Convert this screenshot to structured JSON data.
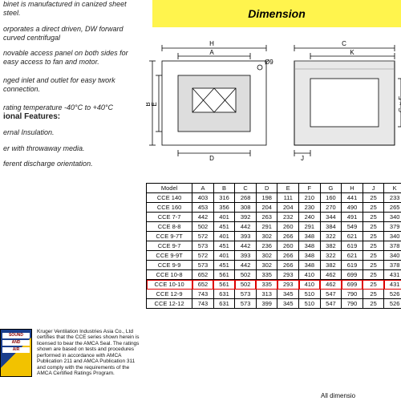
{
  "banner": {
    "title": "Dimension"
  },
  "left": {
    "p1": "binet is manufactured in\ncanized sheet steel.",
    "p2": "orporates a direct driven,\nDW forward curved centrifugal",
    "b1": "novable access panel on both sides for easy access to fan and motor.",
    "b2": "nged inlet and outlet for easy twork connection.",
    "b3": "rating temperature -40°C to +40°C",
    "features_hdr": "ional Features:",
    "f1": "ernal Insulation.",
    "f2": "er with throwaway media.",
    "f3": "ferent discharge orientation."
  },
  "amca": {
    "logo_top": "",
    "logo_mid1": "SOUND",
    "logo_mid2": "AND",
    "logo_mid3": "AIR",
    "text": "Kruger Ventilation Industries Asia Co., Ltd certifies that the CCE series shown herein is licensed to bear the AMCA Seal. The ratings shown are based on tests and procedures performed in accordance with AMCA Publication 211 and AMCA Publication 311 and comply with the requirements of the AMCA Certified Ratings Program."
  },
  "draw": {
    "dims_front": [
      "H",
      "A",
      "Ø9",
      "B",
      "E",
      "D"
    ],
    "dims_side": [
      "C",
      "K",
      "G × F",
      "J"
    ]
  },
  "table": {
    "headers": [
      "Model",
      "A",
      "B",
      "C",
      "D",
      "E",
      "F",
      "G",
      "H",
      "J",
      "K"
    ],
    "rows": [
      [
        "CCE 140",
        "403",
        "316",
        "268",
        "198",
        "111",
        "210",
        "160",
        "441",
        "25",
        "233"
      ],
      [
        "CCE 160",
        "453",
        "356",
        "308",
        "204",
        "204",
        "230",
        "270",
        "490",
        "25",
        "265"
      ],
      [
        "CCE 7-7",
        "442",
        "401",
        "392",
        "263",
        "232",
        "240",
        "344",
        "491",
        "25",
        "340"
      ],
      [
        "CCE 8-8",
        "502",
        "451",
        "442",
        "291",
        "260",
        "291",
        "384",
        "549",
        "25",
        "379"
      ],
      [
        "CCE 9-7T",
        "572",
        "401",
        "393",
        "302",
        "266",
        "348",
        "322",
        "621",
        "25",
        "340"
      ],
      [
        "CCE 9-7",
        "573",
        "451",
        "442",
        "236",
        "260",
        "348",
        "382",
        "619",
        "25",
        "378"
      ],
      [
        "CCE 9-9T",
        "572",
        "401",
        "393",
        "302",
        "266",
        "348",
        "322",
        "621",
        "25",
        "340"
      ],
      [
        "CCE 9-9",
        "573",
        "451",
        "442",
        "302",
        "266",
        "348",
        "382",
        "619",
        "25",
        "378"
      ],
      [
        "CCE 10-8",
        "652",
        "561",
        "502",
        "335",
        "293",
        "410",
        "462",
        "699",
        "25",
        "431"
      ],
      [
        "CCE 10-10",
        "652",
        "561",
        "502",
        "335",
        "293",
        "410",
        "462",
        "699",
        "25",
        "431"
      ],
      [
        "CCE 12-9",
        "743",
        "631",
        "573",
        "313",
        "345",
        "510",
        "547",
        "790",
        "25",
        "526"
      ],
      [
        "CCE 12-12",
        "743",
        "631",
        "573",
        "399",
        "345",
        "510",
        "547",
        "790",
        "25",
        "526"
      ]
    ],
    "highlight_index": 9
  },
  "note": "All dimensio"
}
